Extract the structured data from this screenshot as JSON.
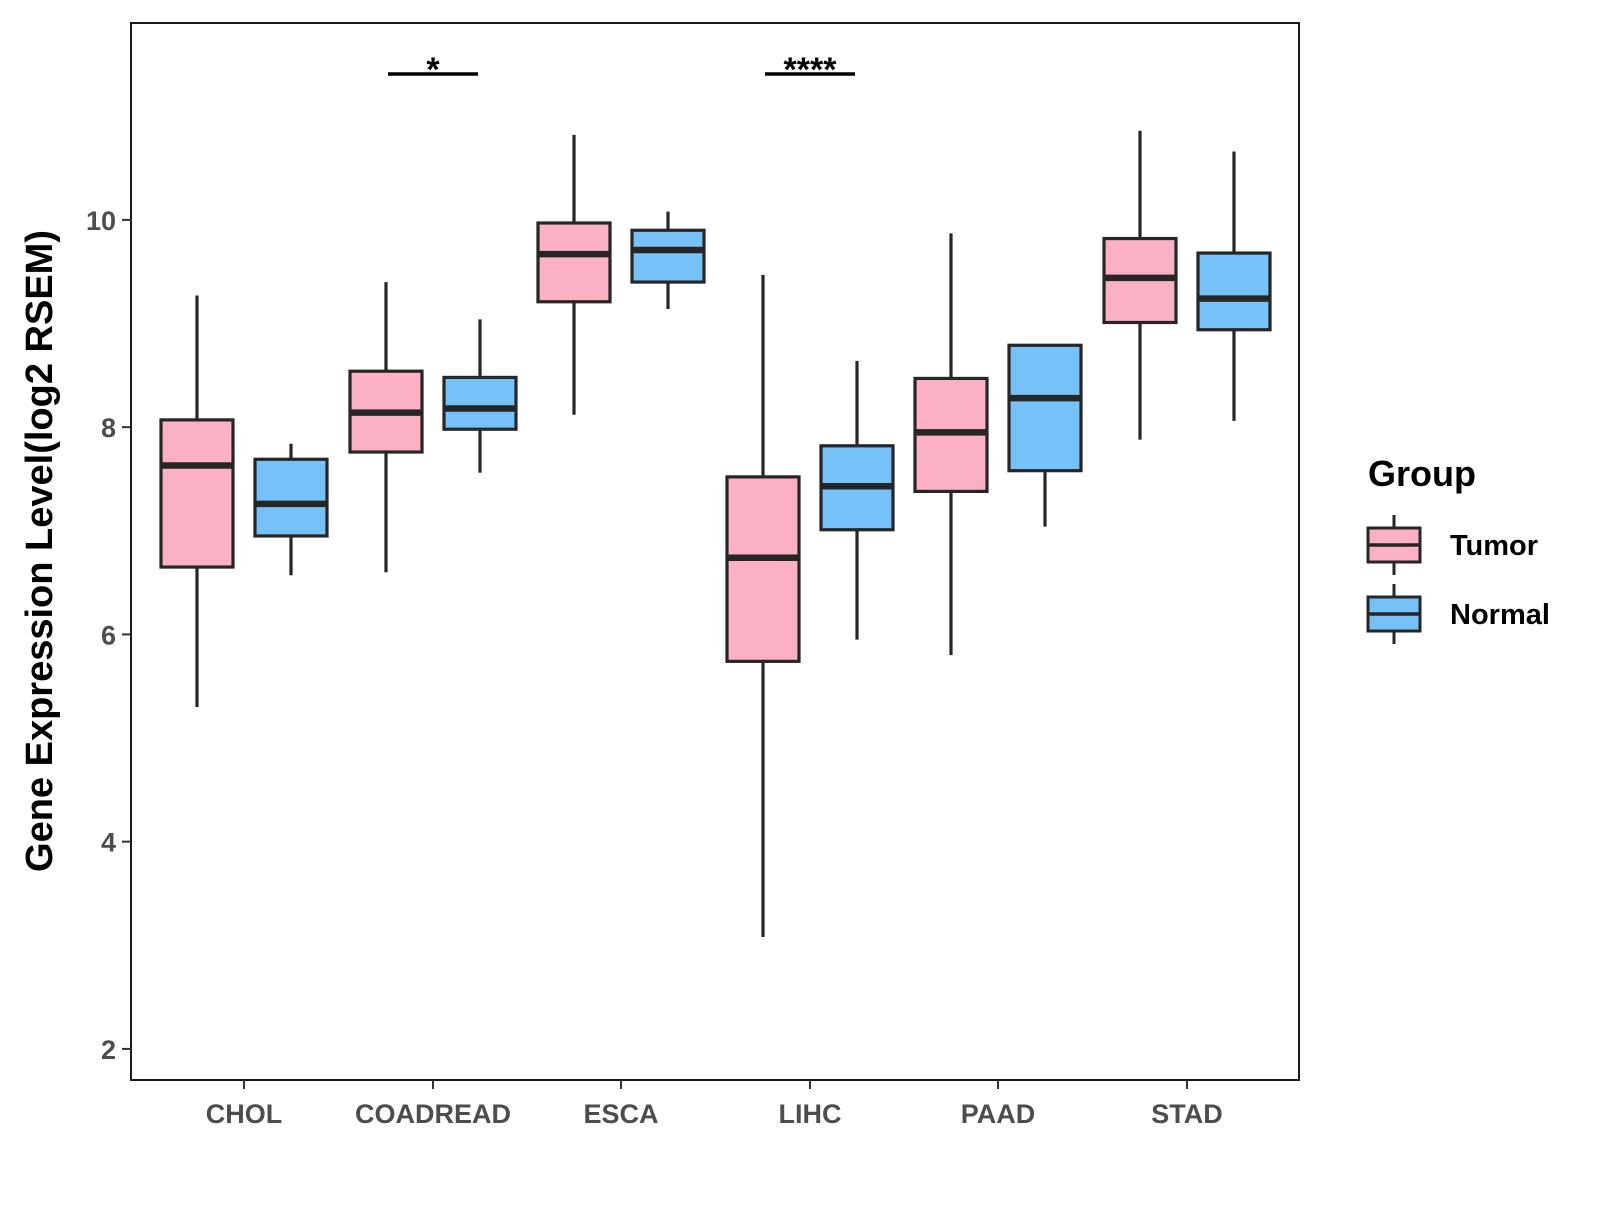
{
  "chart_data": {
    "type": "boxplot",
    "title": "",
    "xlabel": "",
    "ylabel": "Gene Expression Level(log2 RSEM)",
    "ylim": [
      1.7,
      11.9
    ],
    "yticks": [
      2,
      4,
      6,
      8,
      10
    ],
    "categories": [
      "CHOL",
      "COADREAD",
      "ESCA",
      "LIHC",
      "PAAD",
      "STAD"
    ],
    "legend": {
      "title": "Group",
      "position": "right",
      "entries": [
        {
          "name": "Tumor",
          "color": "#FBB1C3"
        },
        {
          "name": "Normal",
          "color": "#76C1F7"
        }
      ]
    },
    "series": [
      {
        "name": "Tumor",
        "color": "#FBB1C3",
        "boxes": [
          {
            "min": 5.3,
            "q1": 6.65,
            "median": 7.63,
            "q3": 8.07,
            "max": 9.27
          },
          {
            "min": 6.6,
            "q1": 7.76,
            "median": 8.14,
            "q3": 8.54,
            "max": 9.4
          },
          {
            "min": 8.12,
            "q1": 9.21,
            "median": 9.67,
            "q3": 9.97,
            "max": 10.82
          },
          {
            "min": 3.08,
            "q1": 5.74,
            "median": 6.74,
            "q3": 7.52,
            "max": 9.47
          },
          {
            "min": 5.8,
            "q1": 7.38,
            "median": 7.95,
            "q3": 8.47,
            "max": 9.87
          },
          {
            "min": 7.88,
            "q1": 9.01,
            "median": 9.44,
            "q3": 9.82,
            "max": 10.86
          }
        ]
      },
      {
        "name": "Normal",
        "color": "#76C1F7",
        "boxes": [
          {
            "min": 6.57,
            "q1": 6.95,
            "median": 7.26,
            "q3": 7.69,
            "max": 7.84
          },
          {
            "min": 7.56,
            "q1": 7.98,
            "median": 8.18,
            "q3": 8.48,
            "max": 9.04
          },
          {
            "min": 9.14,
            "q1": 9.4,
            "median": 9.71,
            "q3": 9.9,
            "max": 10.08
          },
          {
            "min": 5.95,
            "q1": 7.01,
            "median": 7.43,
            "q3": 7.82,
            "max": 8.64
          },
          {
            "min": 7.04,
            "q1": 7.58,
            "median": 8.28,
            "q3": 8.79,
            "max": 8.79
          },
          {
            "min": 8.06,
            "q1": 8.94,
            "median": 9.24,
            "q3": 9.68,
            "max": 10.66
          }
        ]
      }
    ],
    "significance": [
      {
        "category": "COADREAD",
        "label": "*"
      },
      {
        "category": "LIHC",
        "label": "****"
      }
    ]
  }
}
